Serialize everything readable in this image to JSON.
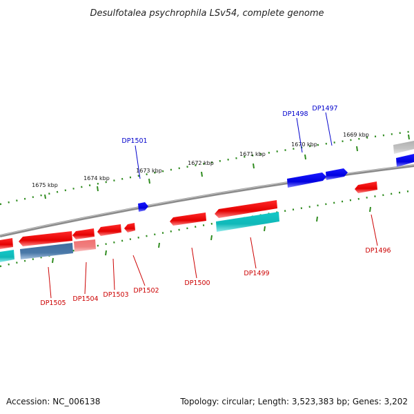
{
  "title": "Desulfotalea psychrophila LSv54, complete genome",
  "footer": {
    "accession": "Accession: NC_006138",
    "summary": "Topology: circular; Length: 3,523,383 bp; Genes: 3,202"
  },
  "kbp_labels": [
    "1675 kbp",
    "1674 kbp",
    "1673 kbp",
    "1672 kbp",
    "1671 kbp",
    "1670 kbp",
    "1669 kbp"
  ],
  "gene_labels_top": [
    "DP1501",
    "DP1498",
    "DP1497"
  ],
  "gene_labels_bottom": [
    "DP1505",
    "DP1504",
    "DP1503",
    "DP1502",
    "DP1500",
    "DP1499",
    "DP1496"
  ],
  "colors": {
    "backbone": "#8a8a8a",
    "tick": "#2e8b1e",
    "forward_gene": "#0000ee",
    "reverse_gene": "#ee0000",
    "forward_label": "#0000cc",
    "reverse_label": "#cc0000",
    "cyan_feature": "#12c8c8",
    "steel_feature": "#4a78a8",
    "pink_feature": "#f08080",
    "grey_feature": "#bdbdbd"
  }
}
